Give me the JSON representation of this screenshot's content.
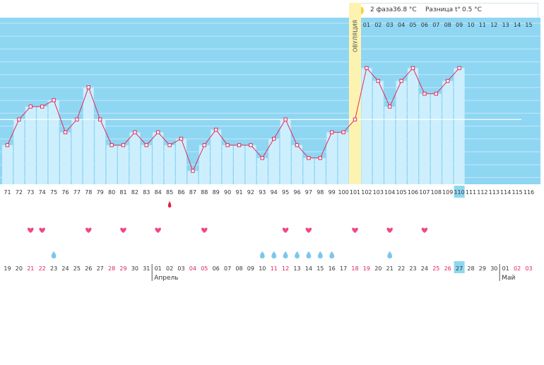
{
  "header": {
    "phase_label": "2 фаза",
    "phase_temp": "36.8 °C",
    "diff_label": "Разница t°",
    "diff_value": "0.5 °C"
  },
  "ovulation_label": "ОВУЛЯЦИЯ",
  "colors": {
    "sky": "#8fd6f3",
    "column": "#cdeffd",
    "line": "#e02b5c",
    "ovulation": "#fdf3b0",
    "heart": "#f0468a",
    "drop": "#7cc6ee",
    "blood": "#e8213a",
    "today": "#8ed7f0",
    "weekend": "#e0205a"
  },
  "chart_data": {
    "type": "line",
    "title": "",
    "xlabel": "",
    "ylabel": "",
    "cycle_days": [
      71,
      72,
      73,
      74,
      75,
      76,
      77,
      78,
      79,
      80,
      81,
      82,
      83,
      84,
      85,
      86,
      87,
      88,
      89,
      90,
      91,
      92,
      93,
      94,
      95,
      96,
      97,
      98,
      99,
      100,
      101,
      102,
      103,
      104,
      105,
      106,
      107,
      108,
      109,
      110,
      111,
      112,
      113,
      114,
      115,
      116
    ],
    "cycle_days_upper": [
      "01",
      "02",
      "03",
      "04",
      "05",
      "06",
      "07",
      "08",
      "09",
      "10",
      "11",
      "12",
      "13",
      "14",
      "15"
    ],
    "temperature_level": [
      2,
      4,
      5,
      5,
      5.5,
      3,
      4,
      6.5,
      4,
      2,
      2,
      3,
      2,
      3,
      2,
      2.5,
      0,
      2,
      3.2,
      2,
      2,
      2,
      1,
      2.5,
      4,
      2,
      1,
      1,
      3,
      3,
      4,
      8,
      7,
      5,
      7,
      8,
      6,
      6,
      7,
      8,
      null,
      null,
      null,
      null,
      null,
      null
    ],
    "coverline_level": 4,
    "ovulation_cycle_day": 101,
    "today_cycle_day": 110,
    "intercourse_days": [
      73,
      74,
      78,
      81,
      84,
      88,
      95,
      97,
      101,
      104,
      107
    ],
    "discharge_days": [
      75,
      93,
      94,
      95,
      96,
      97,
      98,
      99,
      104
    ],
    "bleeding_days": [
      85
    ],
    "dates": [
      "19",
      "20",
      "21",
      "22",
      "23",
      "24",
      "25",
      "26",
      "27",
      "28",
      "29",
      "30",
      "31",
      "01",
      "02",
      "03",
      "04",
      "05",
      "06",
      "07",
      "08",
      "09",
      "10",
      "11",
      "12",
      "13",
      "14",
      "15",
      "16",
      "17",
      "18",
      "19",
      "20",
      "21",
      "22",
      "23",
      "24",
      "25",
      "26",
      "27",
      "28",
      "29",
      "30",
      "01",
      "02",
      "03"
    ],
    "weekend_dates_idx": [
      2,
      3,
      9,
      10,
      16,
      17,
      23,
      24,
      30,
      31,
      37,
      38,
      44,
      45
    ],
    "month_labels": [
      {
        "label": "Апрель",
        "at_index": 13
      },
      {
        "label": "Май",
        "at_index": 43
      }
    ]
  }
}
